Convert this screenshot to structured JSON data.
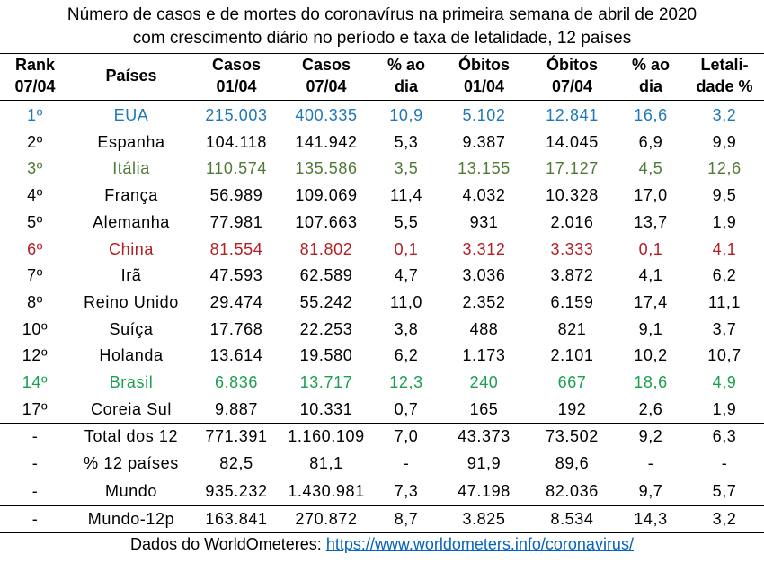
{
  "title_line1": "Número de casos e de mortes do coronavírus na primeira semana de abril de 2020",
  "title_line2": "com crescimento diário no período e taxa de letalidade, 12 países",
  "headers": [
    [
      "Rank",
      "07/04"
    ],
    [
      "Países",
      ""
    ],
    [
      "Casos",
      "01/04"
    ],
    [
      "Casos",
      "07/04"
    ],
    [
      "% ao",
      "dia"
    ],
    [
      "Óbitos",
      "01/04"
    ],
    [
      "Óbitos",
      "07/04"
    ],
    [
      "% ao",
      "dia"
    ],
    [
      "Letali-",
      "dade %"
    ]
  ],
  "colors": {
    "blue": "#1f78b8",
    "olive": "#4f7a35",
    "red": "#b41e23",
    "green": "#1aa050",
    "link": "#0563c1"
  },
  "chart_data": {
    "type": "table",
    "columns": [
      "Rank 07/04",
      "Países",
      "Casos 01/04",
      "Casos 07/04",
      "% ao dia",
      "Óbitos 01/04",
      "Óbitos 07/04",
      "% ao dia",
      "Letalidade %"
    ],
    "rows": [
      [
        "1º",
        "EUA",
        "215.003",
        "400.335",
        "10,9",
        "5.102",
        "12.841",
        "16,6",
        "3,2"
      ],
      [
        "2º",
        "Espanha",
        "104.118",
        "141.942",
        "5,3",
        "9.387",
        "14.045",
        "6,9",
        "9,9"
      ],
      [
        "3º",
        "Itália",
        "110.574",
        "135.586",
        "3,5",
        "13.155",
        "17.127",
        "4,5",
        "12,6"
      ],
      [
        "4º",
        "França",
        "56.989",
        "109.069",
        "11,4",
        "4.032",
        "10.328",
        "17,0",
        "9,5"
      ],
      [
        "5º",
        "Alemanha",
        "77.981",
        "107.663",
        "5,5",
        "931",
        "2.016",
        "13,7",
        "1,9"
      ],
      [
        "6º",
        "China",
        "81.554",
        "81.802",
        "0,1",
        "3.312",
        "3.333",
        "0,1",
        "4,1"
      ],
      [
        "7º",
        "Irã",
        "47.593",
        "62.589",
        "4,7",
        "3.036",
        "3.872",
        "4,1",
        "6,2"
      ],
      [
        "8º",
        "Reino Unido",
        "29.474",
        "55.242",
        "11,0",
        "2.352",
        "6.159",
        "17,4",
        "11,1"
      ],
      [
        "10º",
        "Suíça",
        "17.768",
        "22.253",
        "3,8",
        "488",
        "821",
        "9,1",
        "3,7"
      ],
      [
        "12º",
        "Holanda",
        "13.614",
        "19.580",
        "6,2",
        "1.173",
        "2.101",
        "10,2",
        "10,7"
      ],
      [
        "14º",
        "Brasil",
        "6.836",
        "13.717",
        "12,3",
        "240",
        "667",
        "18,6",
        "4,9"
      ],
      [
        "17º",
        "Coreia Sul",
        "9.887",
        "10.331",
        "0,7",
        "165",
        "192",
        "2,6",
        "1,9"
      ]
    ],
    "row_colors": [
      "blue",
      "",
      "olive",
      "",
      "",
      "red",
      "",
      "",
      "",
      "",
      "green",
      ""
    ],
    "totals": [
      [
        "-",
        "Total dos 12",
        "771.391",
        "1.160.109",
        "7,0",
        "43.373",
        "73.502",
        "9,2",
        "6,3"
      ],
      [
        "-",
        "% 12 países",
        "82,5",
        "81,1",
        "-",
        "91,9",
        "89,6",
        "-",
        "-"
      ]
    ],
    "world": [
      [
        "-",
        "Mundo",
        "935.232",
        "1.430.981",
        "7,3",
        "47.198",
        "82.036",
        "9,7",
        "5,7"
      ]
    ],
    "rest": [
      [
        "-",
        "Mundo-12p",
        "163.841",
        "270.872",
        "8,7",
        "3.825",
        "8.534",
        "14,3",
        "3,2"
      ]
    ]
  },
  "source_label": "Dados do WorldOmeteres: ",
  "source_link": "https://www.worldometers.info/coronavirus/"
}
